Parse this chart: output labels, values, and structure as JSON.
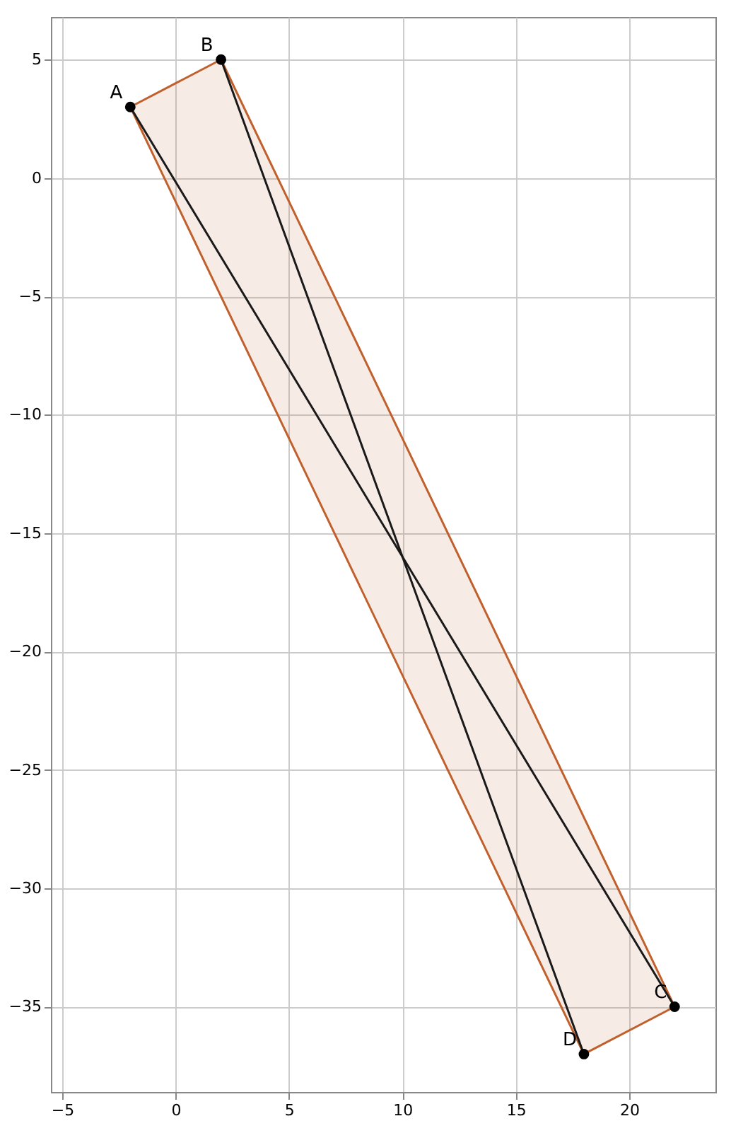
{
  "chart_data": {
    "type": "line",
    "xlim": [
      -5.5,
      23.8
    ],
    "ylim": [
      -38.6,
      6.8
    ],
    "xticks": [
      -5,
      0,
      5,
      10,
      15,
      20
    ],
    "yticks": [
      5,
      0,
      -5,
      -10,
      -15,
      -20,
      -25,
      -30,
      -35
    ],
    "grid": true,
    "series": [
      {
        "type": "area",
        "color": "#c0602c",
        "x": [
          -2,
          2,
          22,
          18,
          -2
        ],
        "values": [
          3,
          5,
          -35,
          -37,
          3
        ]
      },
      {
        "color": "#1a1a1a",
        "x": [
          -2,
          10,
          22
        ],
        "values": [
          3,
          -16,
          -35
        ]
      },
      {
        "color": "#1a1a1a",
        "x": [
          2,
          10,
          18
        ],
        "values": [
          5,
          -16,
          -37
        ]
      },
      {
        "type": "scatter",
        "color": "#000000",
        "marker": "circle",
        "x": [
          -2,
          2,
          22,
          18
        ],
        "values": [
          3,
          5,
          -35,
          -37
        ]
      }
    ],
    "annotations": [
      {
        "text": "A",
        "x": -2,
        "y": 3
      },
      {
        "text": "B",
        "x": 2,
        "y": 5
      },
      {
        "text": "C",
        "x": 22,
        "y": -35
      },
      {
        "text": "D",
        "x": 18,
        "y": -37
      }
    ]
  }
}
